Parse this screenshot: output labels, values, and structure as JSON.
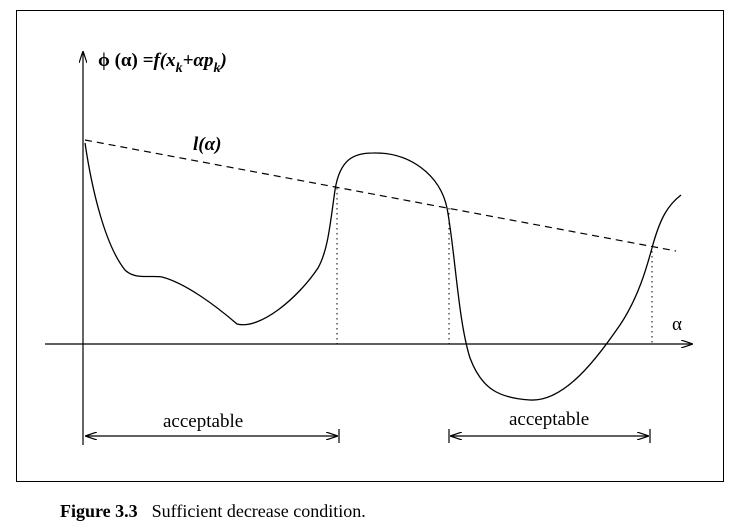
{
  "figure": {
    "y_axis_label": {
      "phi_alpha": "ϕ (α)",
      "equals": " =",
      "f_open": "f(x",
      "sub_k1": "k",
      "plus_alpha_p": "+αp",
      "sub_k2": "k",
      "close_paren": ")"
    },
    "x_axis_label": "α",
    "line_label": "l(α)",
    "acceptable_label_1": "acceptable",
    "acceptable_label_2": "acceptable"
  },
  "caption": {
    "number": "Figure 3.3",
    "text": "Sufficient decrease condition."
  }
}
